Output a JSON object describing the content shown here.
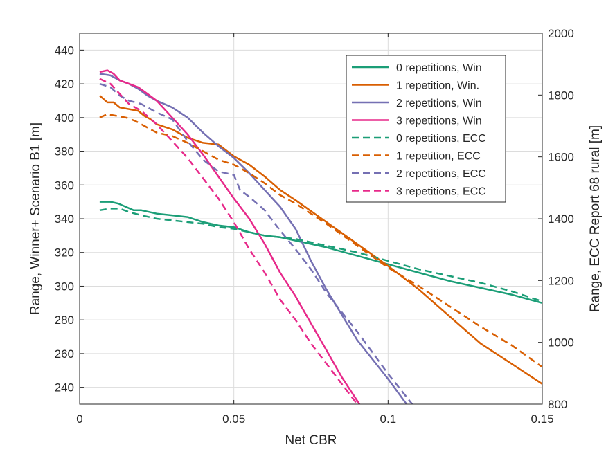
{
  "chart_data": {
    "type": "line",
    "xlabel": "Net CBR",
    "ylabel_left": "Range, Winner+ Scenario B1 [m]",
    "ylabel_right": "Range, ECC Report 68 rural [m]",
    "xlim": [
      0,
      0.15
    ],
    "ylim_left": [
      230,
      450
    ],
    "ylim_right": [
      800,
      2000
    ],
    "x_ticks": [
      0,
      0.05,
      0.1,
      0.15
    ],
    "x_tick_labels": [
      "0",
      "0.05",
      "0.1",
      "0.15"
    ],
    "y_ticks_left": [
      240,
      260,
      280,
      300,
      320,
      340,
      360,
      380,
      400,
      420,
      440
    ],
    "y_tick_labels_left": [
      "240",
      "260",
      "280",
      "300",
      "320",
      "340",
      "360",
      "380",
      "400",
      "420",
      "440"
    ],
    "y_ticks_right": [
      800,
      1000,
      1200,
      1400,
      1600,
      1800,
      2000
    ],
    "y_tick_labels_right": [
      "800",
      "1000",
      "1200",
      "1400",
      "1600",
      "1800",
      "2000"
    ],
    "grid": true,
    "legend_position": "top-right",
    "series": [
      {
        "name": "0 repetitions, Win",
        "axis": "left",
        "color": "#1b9e77",
        "dash": false,
        "x": [
          0.0065,
          0.01,
          0.0125,
          0.015,
          0.0175,
          0.02,
          0.025,
          0.03,
          0.035,
          0.04,
          0.045,
          0.05,
          0.055,
          0.06,
          0.065,
          0.07,
          0.08,
          0.09,
          0.1,
          0.11,
          0.12,
          0.13,
          0.14,
          0.15
        ],
        "y": [
          350,
          350,
          349,
          347,
          345,
          345,
          343,
          342,
          341,
          338,
          336,
          335,
          332,
          330,
          329,
          327,
          323,
          318,
          313,
          308,
          303,
          299,
          295,
          290
        ]
      },
      {
        "name": "1 repetition, Win.",
        "axis": "left",
        "color": "#d95f02",
        "dash": false,
        "x": [
          0.0065,
          0.009,
          0.011,
          0.013,
          0.016,
          0.019,
          0.021,
          0.023,
          0.025,
          0.03,
          0.035,
          0.04,
          0.045,
          0.05,
          0.055,
          0.06,
          0.065,
          0.07,
          0.08,
          0.09,
          0.1,
          0.11,
          0.12,
          0.13,
          0.14,
          0.15
        ],
        "y": [
          413,
          409,
          409,
          406,
          405,
          404,
          401,
          399,
          396,
          393,
          388,
          385,
          384,
          377,
          372,
          365,
          357,
          351,
          338,
          325,
          312,
          298,
          282,
          266,
          254,
          242
        ]
      },
      {
        "name": "2 repetitions, Win",
        "axis": "left",
        "color": "#7570b3",
        "dash": false,
        "x": [
          0.0065,
          0.01,
          0.013,
          0.016,
          0.019,
          0.022,
          0.025,
          0.03,
          0.035,
          0.04,
          0.045,
          0.05,
          0.055,
          0.06,
          0.065,
          0.07,
          0.075,
          0.08,
          0.09,
          0.1,
          0.11,
          0.115
        ],
        "y": [
          426,
          425,
          422,
          420,
          417,
          413,
          410,
          406,
          400,
          391,
          383,
          376,
          367,
          357,
          347,
          334,
          315,
          298,
          268,
          245,
          220,
          206
        ]
      },
      {
        "name": "3 repetitions, Win",
        "axis": "left",
        "color": "#e7298a",
        "dash": false,
        "x": [
          0.0065,
          0.009,
          0.011,
          0.013,
          0.016,
          0.019,
          0.022,
          0.025,
          0.03,
          0.035,
          0.04,
          0.045,
          0.05,
          0.055,
          0.06,
          0.065,
          0.07,
          0.075,
          0.08,
          0.085,
          0.09,
          0.095
        ],
        "y": [
          427,
          428,
          426,
          422,
          420,
          418,
          414,
          410,
          400,
          390,
          378,
          365,
          352,
          340,
          325,
          308,
          294,
          278,
          262,
          246,
          232,
          218
        ]
      },
      {
        "name": "0 repetitions, ECC",
        "axis": "left",
        "color": "#1b9e77",
        "dash": true,
        "x": [
          0.0065,
          0.01,
          0.013,
          0.016,
          0.02,
          0.025,
          0.03,
          0.035,
          0.04,
          0.045,
          0.05,
          0.055,
          0.06,
          0.065,
          0.07,
          0.08,
          0.09,
          0.1,
          0.11,
          0.12,
          0.13,
          0.14,
          0.15
        ],
        "y": [
          345,
          346,
          346,
          344,
          342,
          340,
          339,
          338,
          337,
          335,
          334,
          332,
          330,
          329,
          328,
          324,
          320,
          315,
          310,
          306,
          302,
          297,
          291
        ]
      },
      {
        "name": "1 repetition, ECC",
        "axis": "left",
        "color": "#d95f02",
        "dash": true,
        "x": [
          0.0065,
          0.009,
          0.012,
          0.015,
          0.018,
          0.021,
          0.025,
          0.03,
          0.035,
          0.04,
          0.045,
          0.05,
          0.055,
          0.06,
          0.065,
          0.07,
          0.08,
          0.09,
          0.1,
          0.11,
          0.12,
          0.13,
          0.14,
          0.15
        ],
        "y": [
          400,
          402,
          401,
          400,
          398,
          395,
          391,
          389,
          385,
          380,
          375,
          372,
          367,
          361,
          354,
          349,
          337,
          324,
          311,
          300,
          288,
          276,
          265,
          252
        ]
      },
      {
        "name": "2 repetitions, ECC",
        "axis": "left",
        "color": "#7570b3",
        "dash": true,
        "x": [
          0.0065,
          0.01,
          0.013,
          0.016,
          0.02,
          0.025,
          0.03,
          0.035,
          0.04,
          0.045,
          0.05,
          0.052,
          0.055,
          0.06,
          0.065,
          0.07,
          0.075,
          0.08,
          0.09,
          0.1,
          0.11,
          0.115
        ],
        "y": [
          420,
          418,
          413,
          410,
          408,
          403,
          399,
          386,
          375,
          368,
          366,
          357,
          353,
          345,
          333,
          322,
          310,
          296,
          273,
          248,
          225,
          214
        ]
      },
      {
        "name": "3 repetitions, ECC",
        "axis": "left",
        "color": "#e7298a",
        "dash": true,
        "x": [
          0.0065,
          0.01,
          0.013,
          0.016,
          0.02,
          0.025,
          0.03,
          0.035,
          0.04,
          0.045,
          0.05,
          0.055,
          0.06,
          0.065,
          0.07,
          0.075,
          0.08,
          0.085,
          0.09
        ],
        "y": [
          423,
          420,
          414,
          408,
          404,
          396,
          386,
          376,
          364,
          352,
          338,
          322,
          308,
          292,
          280,
          266,
          254,
          242,
          230
        ]
      }
    ]
  }
}
